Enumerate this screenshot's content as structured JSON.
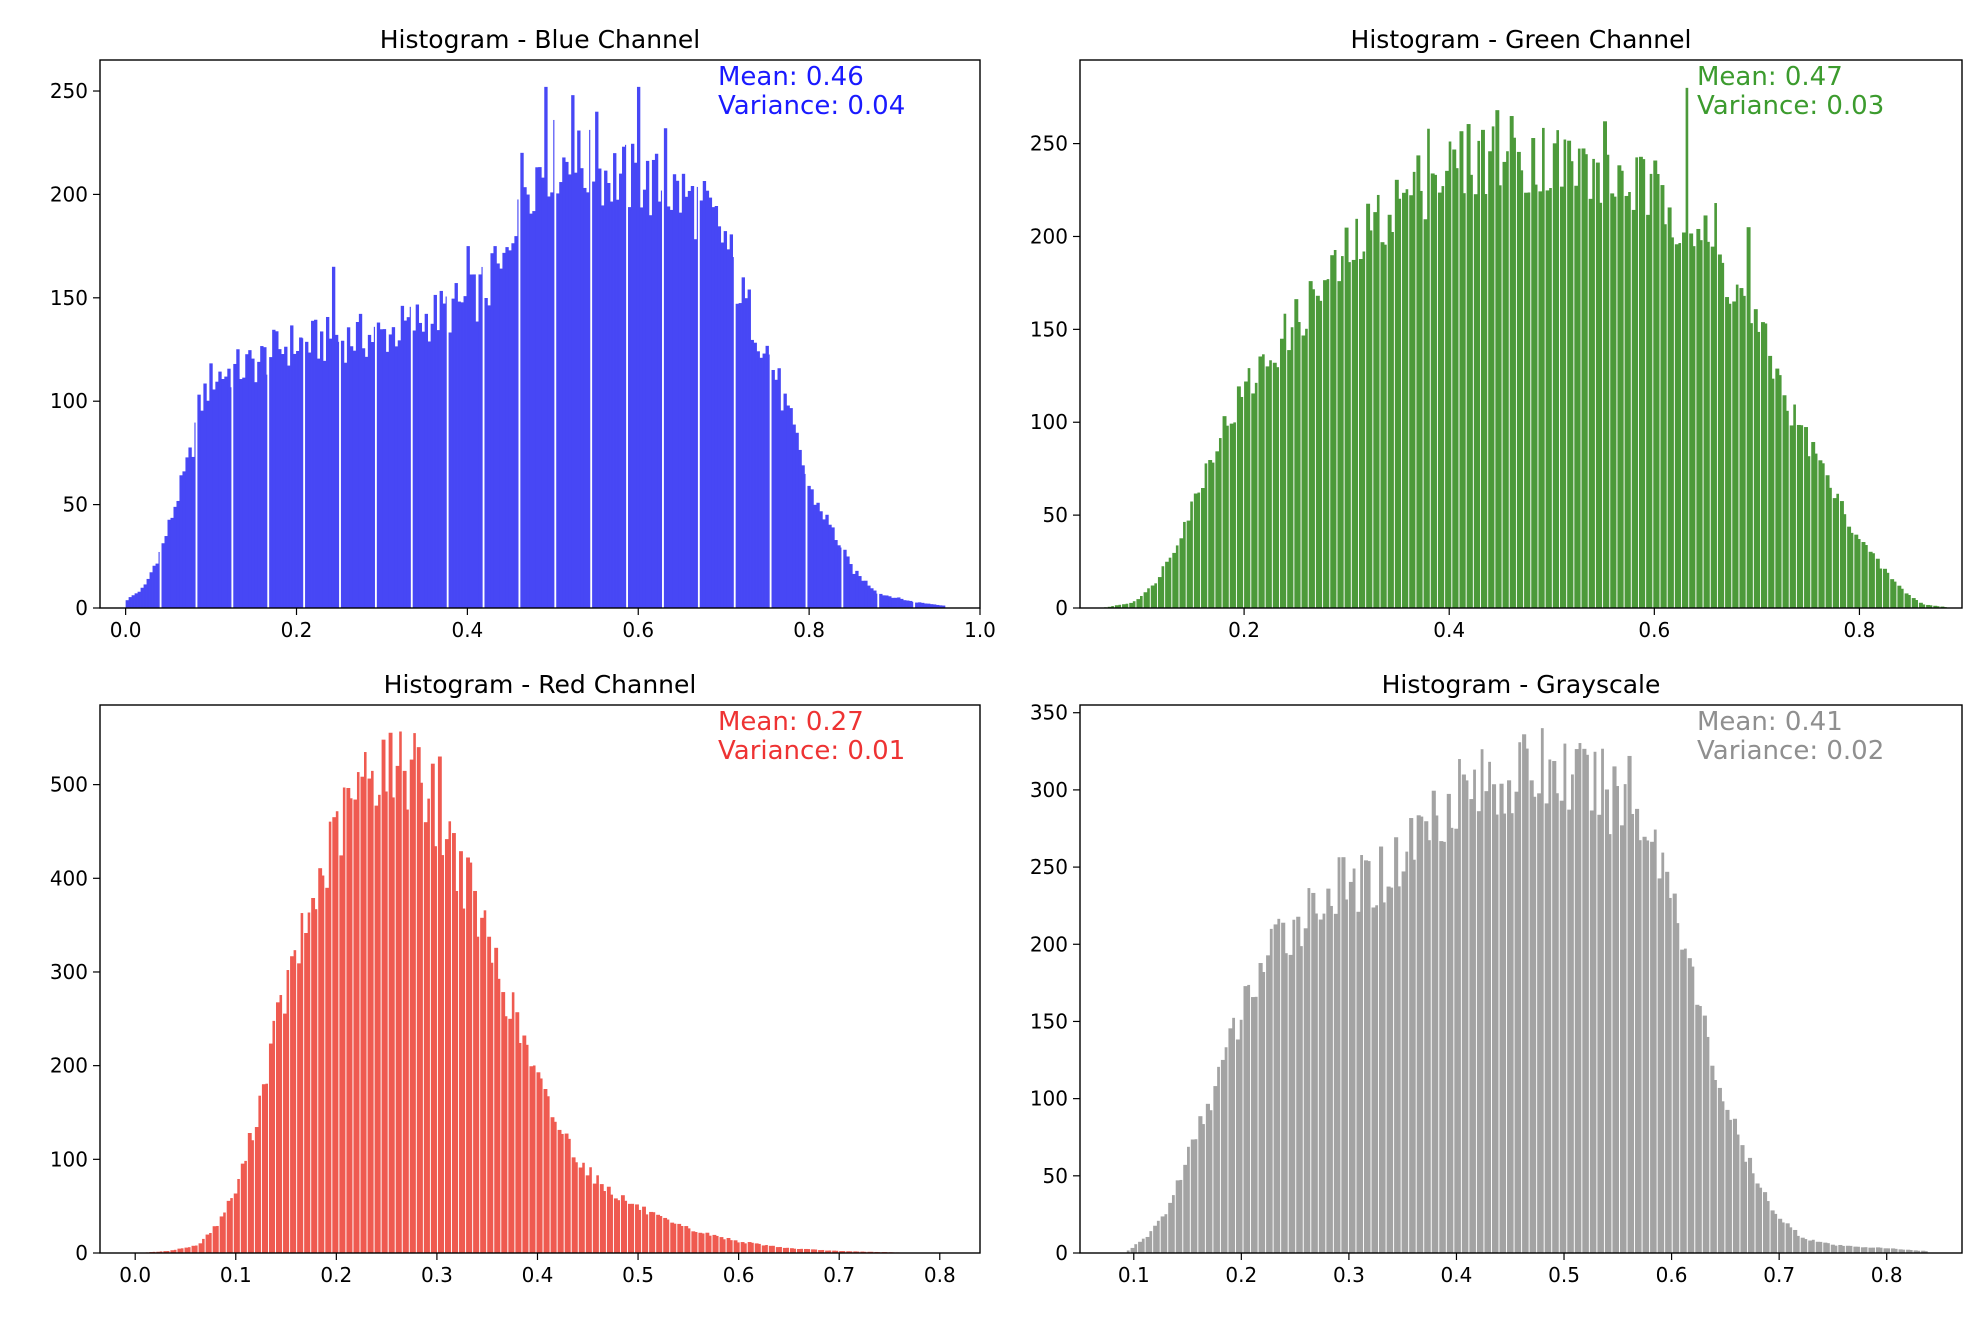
{
  "chart_data": [
    {
      "type": "bar",
      "title": "Histogram - Blue Channel",
      "color": "#4747f5",
      "annotation_color": "#1a1aff",
      "annotation": [
        "Mean: 0.46",
        "Variance: 0.04"
      ],
      "xlim": [
        -0.03,
        1.0
      ],
      "ylim": [
        0,
        265
      ],
      "xticks": [
        0.0,
        0.2,
        0.4,
        0.6,
        0.8,
        1.0
      ],
      "xtick_labels": [
        "0.0",
        "0.2",
        "0.4",
        "0.6",
        "0.8",
        "1.0"
      ],
      "yticks": [
        0,
        50,
        100,
        150,
        200,
        250
      ],
      "ytick_labels": [
        "0",
        "50",
        "100",
        "150",
        "200",
        "250"
      ],
      "x_range": [
        0.0,
        0.96
      ],
      "gap_every": 12,
      "anchors": [
        [
          0.0,
          4
        ],
        [
          0.02,
          10
        ],
        [
          0.04,
          28
        ],
        [
          0.06,
          55
        ],
        [
          0.075,
          75
        ],
        [
          0.085,
          98
        ],
        [
          0.1,
          112
        ],
        [
          0.15,
          118
        ],
        [
          0.18,
          126
        ],
        [
          0.2,
          128
        ],
        [
          0.25,
          130
        ],
        [
          0.3,
          132
        ],
        [
          0.35,
          140
        ],
        [
          0.4,
          148
        ],
        [
          0.44,
          162
        ],
        [
          0.46,
          205
        ],
        [
          0.5,
          218
        ],
        [
          0.55,
          212
        ],
        [
          0.6,
          206
        ],
        [
          0.65,
          200
        ],
        [
          0.68,
          190
        ],
        [
          0.7,
          178
        ],
        [
          0.72,
          150
        ],
        [
          0.75,
          125
        ],
        [
          0.77,
          98
        ],
        [
          0.79,
          72
        ],
        [
          0.8,
          56
        ],
        [
          0.82,
          42
        ],
        [
          0.85,
          18
        ],
        [
          0.88,
          7
        ],
        [
          0.92,
          3
        ],
        [
          0.96,
          1
        ]
      ],
      "spikes": [
        [
          0.24,
          165
        ],
        [
          0.49,
          252
        ],
        [
          0.6,
          252
        ],
        [
          0.55,
          240
        ],
        [
          0.4,
          175
        ],
        [
          0.43,
          175
        ],
        [
          0.52,
          248
        ],
        [
          0.63,
          232
        ]
      ]
    },
    {
      "type": "bar",
      "title": "Histogram - Green Channel",
      "color": "#4c9a3a",
      "annotation_color": "#3c9b2e",
      "annotation": [
        "Mean: 0.47",
        "Variance: 0.03"
      ],
      "xlim": [
        0.04,
        0.9
      ],
      "ylim": [
        0,
        295
      ],
      "xticks": [
        0.2,
        0.4,
        0.6,
        0.8
      ],
      "xtick_labels": [
        "0.2",
        "0.4",
        "0.6",
        "0.8"
      ],
      "yticks": [
        0,
        50,
        100,
        150,
        200,
        250
      ],
      "ytick_labels": [
        "0",
        "50",
        "100",
        "150",
        "200",
        "250"
      ],
      "x_range": [
        0.06,
        0.89
      ],
      "gap_every": 2,
      "anchors": [
        [
          0.06,
          0
        ],
        [
          0.09,
          3
        ],
        [
          0.11,
          12
        ],
        [
          0.13,
          32
        ],
        [
          0.15,
          58
        ],
        [
          0.17,
          88
        ],
        [
          0.2,
          118
        ],
        [
          0.23,
          140
        ],
        [
          0.26,
          162
        ],
        [
          0.3,
          190
        ],
        [
          0.34,
          215
        ],
        [
          0.38,
          232
        ],
        [
          0.42,
          242
        ],
        [
          0.46,
          246
        ],
        [
          0.5,
          242
        ],
        [
          0.54,
          235
        ],
        [
          0.58,
          228
        ],
        [
          0.62,
          215
        ],
        [
          0.65,
          195
        ],
        [
          0.68,
          170
        ],
        [
          0.71,
          138
        ],
        [
          0.73,
          108
        ],
        [
          0.76,
          78
        ],
        [
          0.78,
          55
        ],
        [
          0.8,
          36
        ],
        [
          0.82,
          22
        ],
        [
          0.84,
          10
        ],
        [
          0.86,
          2
        ],
        [
          0.89,
          0
        ]
      ],
      "spikes": [
        [
          0.63,
          280
        ],
        [
          0.445,
          268
        ],
        [
          0.38,
          258
        ],
        [
          0.55,
          262
        ],
        [
          0.66,
          218
        ],
        [
          0.69,
          205
        ]
      ]
    },
    {
      "type": "bar",
      "title": "Histogram - Red Channel",
      "color": "#ef5a50",
      "annotation_color": "#ee3333",
      "annotation": [
        "Mean: 0.27",
        "Variance: 0.01"
      ],
      "xlim": [
        -0.035,
        0.84
      ],
      "ylim": [
        0,
        585
      ],
      "xticks": [
        0.0,
        0.1,
        0.2,
        0.3,
        0.4,
        0.5,
        0.6,
        0.7,
        0.8
      ],
      "xtick_labels": [
        "0.0",
        "0.1",
        "0.2",
        "0.3",
        "0.4",
        "0.5",
        "0.6",
        "0.7",
        "0.8"
      ],
      "yticks": [
        0,
        100,
        200,
        300,
        400,
        500
      ],
      "ytick_labels": [
        "0",
        "100",
        "200",
        "300",
        "400",
        "500"
      ],
      "x_range": [
        0.0,
        0.78
      ],
      "gap_every": 2,
      "anchors": [
        [
          0.0,
          0
        ],
        [
          0.03,
          2
        ],
        [
          0.06,
          8
        ],
        [
          0.08,
          30
        ],
        [
          0.1,
          70
        ],
        [
          0.12,
          150
        ],
        [
          0.14,
          250
        ],
        [
          0.16,
          320
        ],
        [
          0.18,
          390
        ],
        [
          0.2,
          450
        ],
        [
          0.22,
          495
        ],
        [
          0.24,
          520
        ],
        [
          0.26,
          525
        ],
        [
          0.28,
          510
        ],
        [
          0.3,
          470
        ],
        [
          0.32,
          420
        ],
        [
          0.34,
          360
        ],
        [
          0.36,
          300
        ],
        [
          0.38,
          240
        ],
        [
          0.4,
          180
        ],
        [
          0.42,
          135
        ],
        [
          0.44,
          100
        ],
        [
          0.46,
          75
        ],
        [
          0.48,
          60
        ],
        [
          0.5,
          48
        ],
        [
          0.53,
          32
        ],
        [
          0.56,
          22
        ],
        [
          0.6,
          12
        ],
        [
          0.65,
          5
        ],
        [
          0.7,
          2
        ],
        [
          0.78,
          0
        ]
      ],
      "spikes": [
        [
          0.275,
          555
        ],
        [
          0.245,
          548
        ],
        [
          0.28,
          540
        ],
        [
          0.3,
          530
        ],
        [
          0.26,
          520
        ]
      ]
    },
    {
      "type": "bar",
      "title": "Histogram - Grayscale",
      "color": "#a3a3a3",
      "annotation_color": "#8f8f8f",
      "annotation": [
        "Mean: 0.41",
        "Variance: 0.02"
      ],
      "xlim": [
        0.05,
        0.87
      ],
      "ylim": [
        0,
        355
      ],
      "xticks": [
        0.1,
        0.2,
        0.3,
        0.4,
        0.5,
        0.6,
        0.7,
        0.8
      ],
      "xtick_labels": [
        "0.1",
        "0.2",
        "0.3",
        "0.4",
        "0.5",
        "0.6",
        "0.7",
        "0.8"
      ],
      "yticks": [
        0,
        50,
        100,
        150,
        200,
        250,
        300,
        350
      ],
      "ytick_labels": [
        "0",
        "50",
        "100",
        "150",
        "200",
        "250",
        "300",
        "350"
      ],
      "x_range": [
        0.09,
        0.84
      ],
      "gap_every": 2,
      "anchors": [
        [
          0.09,
          0
        ],
        [
          0.11,
          10
        ],
        [
          0.13,
          28
        ],
        [
          0.15,
          65
        ],
        [
          0.17,
          100
        ],
        [
          0.19,
          140
        ],
        [
          0.21,
          175
        ],
        [
          0.23,
          200
        ],
        [
          0.25,
          215
        ],
        [
          0.28,
          235
        ],
        [
          0.31,
          238
        ],
        [
          0.34,
          250
        ],
        [
          0.37,
          280
        ],
        [
          0.4,
          300
        ],
        [
          0.43,
          305
        ],
        [
          0.46,
          310
        ],
        [
          0.49,
          312
        ],
        [
          0.52,
          305
        ],
        [
          0.55,
          295
        ],
        [
          0.57,
          285
        ],
        [
          0.59,
          255
        ],
        [
          0.61,
          210
        ],
        [
          0.62,
          170
        ],
        [
          0.64,
          115
        ],
        [
          0.66,
          75
        ],
        [
          0.68,
          42
        ],
        [
          0.7,
          22
        ],
        [
          0.72,
          10
        ],
        [
          0.75,
          5
        ],
        [
          0.8,
          3
        ],
        [
          0.84,
          1
        ]
      ],
      "spikes": [
        [
          0.48,
          340
        ],
        [
          0.4,
          320
        ],
        [
          0.5,
          330
        ],
        [
          0.56,
          322
        ]
      ]
    }
  ]
}
